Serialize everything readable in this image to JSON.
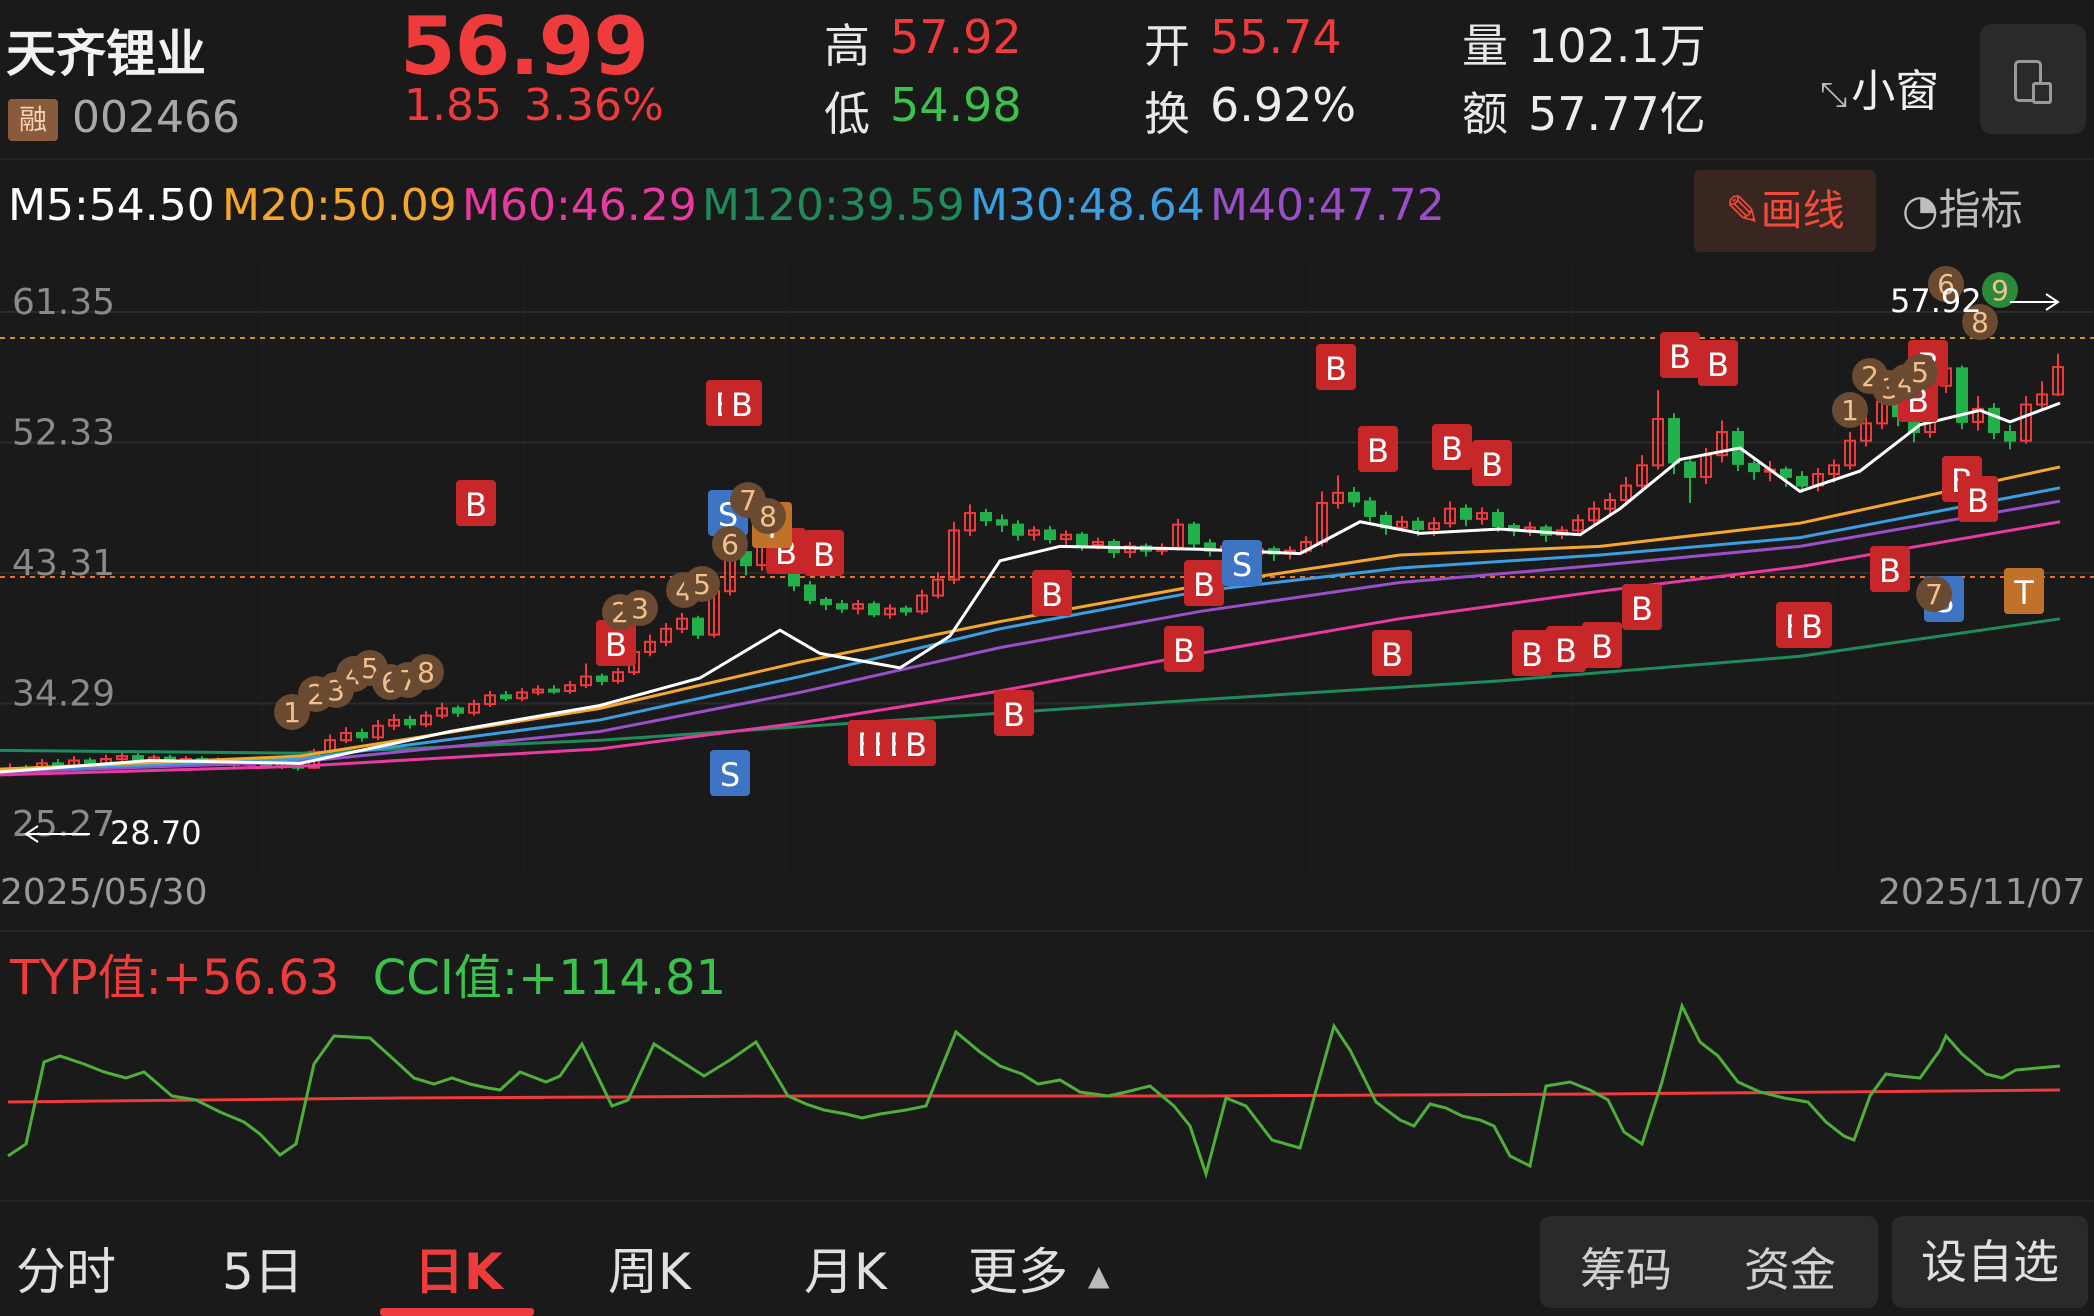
{
  "header": {
    "stock_name": "天齐锂业",
    "margin_badge": "融",
    "stock_code": "002466",
    "price": "56.99",
    "change": "1.85",
    "change_pct": "3.36%",
    "high_label": "高",
    "high": "57.92",
    "low_label": "低",
    "low": "54.98",
    "open_label": "开",
    "open": "55.74",
    "turnover_label": "换",
    "turnover": "6.92%",
    "volume_label": "量",
    "volume": "102.1万",
    "amount_label": "额",
    "amount": "57.77亿",
    "mini_window": "小窗"
  },
  "ma_bar": {
    "items": [
      {
        "label": "M5:54.50",
        "color": "#ffffff"
      },
      {
        "label": "M20:50.09",
        "color": "#f4a72a"
      },
      {
        "label": "M60:46.29",
        "color": "#e83aa0"
      },
      {
        "label": "M120:39.59",
        "color": "#1f8a5a"
      },
      {
        "label": "M30:48.64",
        "color": "#3a9ee0"
      },
      {
        "label": "M40:47.72",
        "color": "#9a4ec8"
      }
    ],
    "draw_label": "画线",
    "indicator_label": "指标"
  },
  "chart": {
    "y_labels": [
      "61.35",
      "52.33",
      "43.31",
      "34.29",
      "25.27"
    ],
    "high_marker": "57.92",
    "low_marker": "28.70",
    "date_start": "2025/05/30",
    "date_end": "2025/11/07",
    "colors": {
      "up": "#ef3b3b",
      "down": "#22b04a",
      "ma5": "#ffffff",
      "ma20": "#f4a72a",
      "ma30": "#3a9ee0",
      "ma40": "#9a4ec8",
      "ma60": "#e83aa0",
      "ma120": "#1f8a5a"
    }
  },
  "cci": {
    "typ_label": "TYP值:+56.63",
    "cci_label": "CCI值:+114.81"
  },
  "tabs": {
    "items": [
      "分时",
      "5日",
      "日K",
      "周K",
      "月K",
      "更多"
    ],
    "active": "日K",
    "chips": "筹码",
    "funds": "资金",
    "add_fav": "设自选"
  }
}
